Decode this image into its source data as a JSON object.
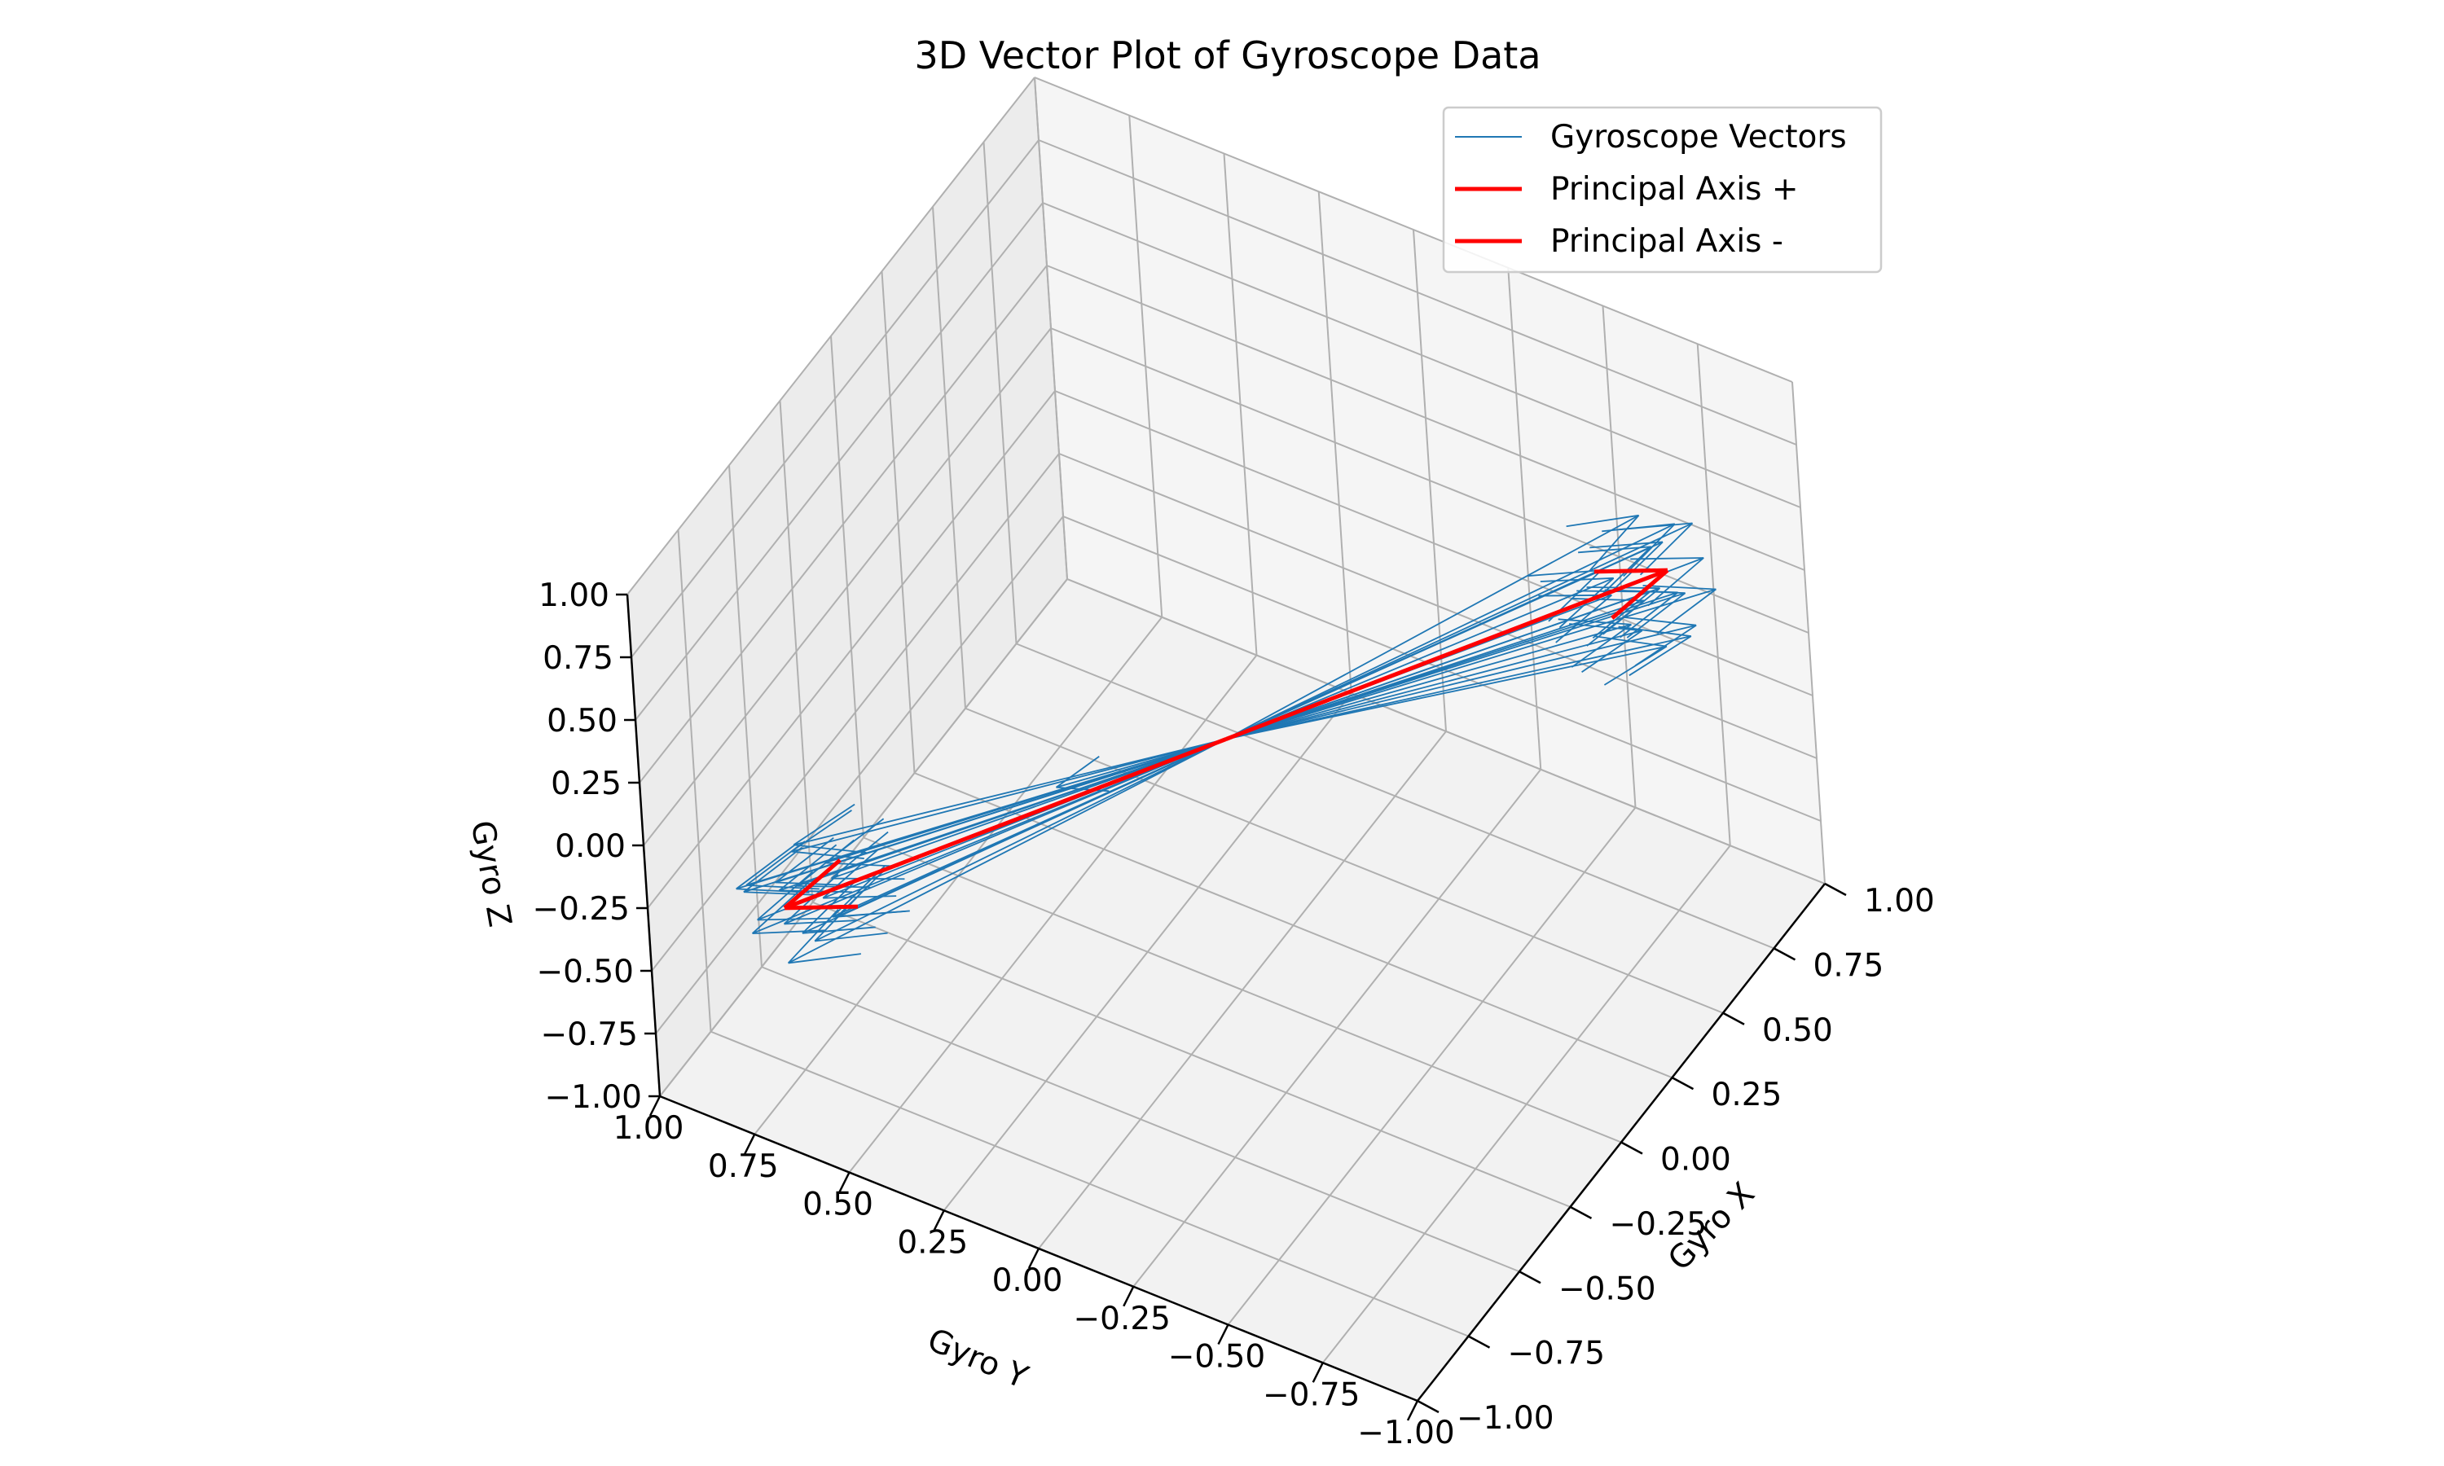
{
  "chart_data": {
    "type": "3d-quiver",
    "title": "3D Vector Plot of Gyroscope Data",
    "xlabel": "Gyro X",
    "ylabel": "Gyro Y",
    "zlabel": "Gyro Z",
    "xlim": [
      -1,
      1
    ],
    "ylim": [
      -1,
      1
    ],
    "zlim": [
      -1,
      1
    ],
    "x_ticks": [
      "−1.00",
      "−0.75",
      "−0.50",
      "−0.25",
      "0.00",
      "0.25",
      "0.50",
      "0.75",
      "1.00"
    ],
    "y_ticks": [
      "−1.00",
      "−0.75",
      "−0.50",
      "−0.25",
      "0.00",
      "0.25",
      "0.50",
      "0.75",
      "1.00"
    ],
    "z_ticks": [
      "−1.00",
      "−0.75",
      "−0.50",
      "−0.25",
      "0.00",
      "0.25",
      "0.50",
      "0.75",
      "1.00"
    ],
    "grid": true,
    "legend_position": "top-right",
    "origin": [
      0,
      0,
      0
    ],
    "series": [
      {
        "name": "Gyroscope Vectors",
        "color": "#1f77b4",
        "vectors": [
          [
            -0.7,
            0.8,
            0.55
          ],
          [
            -0.62,
            0.88,
            0.48
          ],
          [
            -0.55,
            0.95,
            0.42
          ],
          [
            -0.66,
            0.9,
            0.32
          ],
          [
            -0.5,
            0.78,
            0.6
          ],
          [
            -0.78,
            0.72,
            0.4
          ],
          [
            -0.72,
            0.84,
            0.35
          ],
          [
            -0.58,
            0.7,
            0.5
          ],
          [
            -0.68,
            0.92,
            0.58
          ],
          [
            -0.6,
            0.76,
            0.3
          ],
          [
            -0.74,
            0.86,
            0.62
          ],
          [
            -0.52,
            0.9,
            0.38
          ],
          [
            -0.8,
            0.68,
            0.48
          ],
          [
            -0.64,
            0.82,
            0.44
          ],
          [
            -0.56,
            0.84,
            0.52
          ],
          [
            -0.7,
            0.74,
            0.28
          ],
          [
            -0.48,
            0.86,
            0.46
          ],
          [
            -0.76,
            0.8,
            0.56
          ],
          [
            -0.62,
            0.7,
            0.36
          ],
          [
            -0.66,
            0.96,
            0.5
          ],
          [
            0.45,
            -0.2,
            0.15
          ],
          [
            0.62,
            -0.75,
            -0.45
          ],
          [
            0.7,
            -0.82,
            -0.38
          ],
          [
            0.58,
            -0.9,
            -0.52
          ],
          [
            0.66,
            -0.7,
            -0.3
          ],
          [
            0.74,
            -0.86,
            -0.48
          ],
          [
            0.55,
            -0.78,
            -0.4
          ],
          [
            0.78,
            -0.76,
            -0.55
          ],
          [
            0.6,
            -0.84,
            -0.34
          ],
          [
            0.68,
            -0.92,
            -0.44
          ],
          [
            0.72,
            -0.72,
            -0.5
          ],
          [
            0.64,
            -0.8,
            -0.6
          ],
          [
            0.52,
            -0.88,
            -0.42
          ],
          [
            0.76,
            -0.9,
            -0.36
          ],
          [
            0.8,
            -0.84,
            -0.46
          ],
          [
            0.58,
            -0.74,
            -0.56
          ],
          [
            0.7,
            -0.68,
            -0.4
          ],
          [
            0.66,
            -0.94,
            -0.5
          ],
          [
            0.4,
            -0.95,
            -0.75
          ],
          [
            0.62,
            -0.86,
            -0.62
          ]
        ]
      },
      {
        "name": "Principal Axis +",
        "color": "#ff0000",
        "vectors": [
          [
            0.68,
            -0.82,
            -0.47
          ]
        ]
      },
      {
        "name": "Principal Axis -",
        "color": "#ff0000",
        "vectors": [
          [
            -0.68,
            0.82,
            0.47
          ]
        ]
      }
    ]
  }
}
